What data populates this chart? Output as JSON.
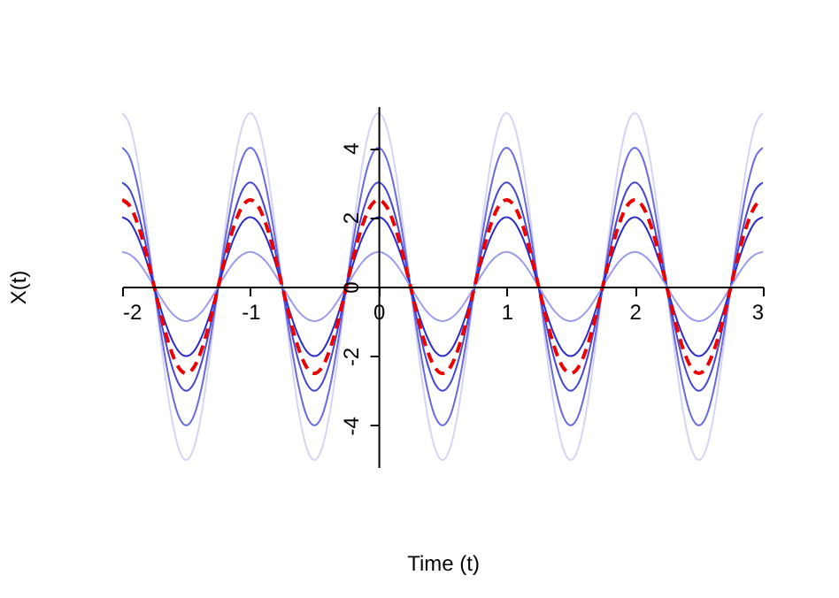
{
  "chart_data": {
    "type": "line",
    "xlabel": "Time (t)",
    "ylabel": "X(t)",
    "x": [
      -2,
      -1.9375,
      -1.875,
      -1.8125,
      -1.75,
      -1.6875,
      -1.625,
      -1.5625,
      -1.5,
      -1.4375,
      -1.375,
      -1.3125,
      -1.25,
      -1.1875,
      -1.125,
      -1.0625,
      -1,
      -0.9375,
      -0.875,
      -0.8125,
      -0.75,
      -0.6875,
      -0.625,
      -0.5625,
      -0.5,
      -0.4375,
      -0.375,
      -0.3125,
      -0.25,
      -0.1875,
      -0.125,
      -0.0625,
      0,
      0.0625,
      0.125,
      0.1875,
      0.25,
      0.3125,
      0.375,
      0.4375,
      0.5,
      0.5625,
      0.625,
      0.6875,
      0.75,
      0.8125,
      0.875,
      0.9375,
      1,
      1.0625,
      1.125,
      1.1875,
      1.25,
      1.3125,
      1.375,
      1.4375,
      1.5,
      1.5625,
      1.625,
      1.6875,
      1.75,
      1.8125,
      1.875,
      1.9375,
      2,
      2.0625,
      2.125,
      2.1875,
      2.25,
      2.3125,
      2.375,
      2.4375,
      2.5,
      2.5625,
      2.625,
      2.6875,
      2.75,
      2.8125,
      2.875,
      2.9375,
      3
    ],
    "series": [
      {
        "color": "#d4d4f6",
        "line_style": "solid",
        "values": [
          5,
          4.62,
          3.54,
          1.91,
          0,
          -1.91,
          -3.54,
          -4.62,
          -5,
          -4.62,
          -3.54,
          -1.91,
          0,
          1.91,
          3.54,
          4.62,
          5,
          4.62,
          3.54,
          1.91,
          0,
          -1.91,
          -3.54,
          -4.62,
          -5,
          -4.62,
          -3.54,
          -1.91,
          0,
          1.91,
          3.54,
          4.62,
          5,
          4.62,
          3.54,
          1.91,
          0,
          -1.91,
          -3.54,
          -4.62,
          -5,
          -4.62,
          -3.54,
          -1.91,
          0,
          1.91,
          3.54,
          4.62,
          5,
          4.62,
          3.54,
          1.91,
          0,
          -1.91,
          -3.54,
          -4.62,
          -5,
          -4.62,
          -3.54,
          -1.91,
          0,
          1.91,
          3.54,
          4.62,
          5,
          4.62,
          3.54,
          1.91,
          0,
          -1.91,
          -3.54,
          -4.62,
          -5,
          -4.62,
          -3.54,
          -1.91,
          0,
          1.91,
          3.54,
          4.62,
          5
        ]
      },
      {
        "color": "#6a6ae2",
        "line_style": "solid",
        "values": [
          4,
          3.7,
          2.83,
          1.53,
          0,
          -1.53,
          -2.83,
          -3.7,
          -4,
          -3.7,
          -2.83,
          -1.53,
          0,
          1.53,
          2.83,
          3.7,
          4,
          3.7,
          2.83,
          1.53,
          0,
          -1.53,
          -2.83,
          -3.7,
          -4,
          -3.7,
          -2.83,
          -1.53,
          0,
          1.53,
          2.83,
          3.7,
          4,
          3.7,
          2.83,
          1.53,
          0,
          -1.53,
          -2.83,
          -3.7,
          -4,
          -3.7,
          -2.83,
          -1.53,
          0,
          1.53,
          2.83,
          3.7,
          4,
          3.7,
          2.83,
          1.53,
          0,
          -1.53,
          -2.83,
          -3.7,
          -4,
          -3.7,
          -2.83,
          -1.53,
          0,
          1.53,
          2.83,
          3.7,
          4,
          3.7,
          2.83,
          1.53,
          0,
          -1.53,
          -2.83,
          -3.7,
          -4,
          -3.7,
          -2.83,
          -1.53,
          0,
          1.53,
          2.83,
          3.7,
          4
        ]
      },
      {
        "color": "#4646d4",
        "line_style": "solid",
        "values": [
          3,
          2.77,
          2.12,
          1.15,
          0,
          -1.15,
          -2.12,
          -2.77,
          -3,
          -2.77,
          -2.12,
          -1.15,
          0,
          1.15,
          2.12,
          2.77,
          3,
          2.77,
          2.12,
          1.15,
          0,
          -1.15,
          -2.12,
          -2.77,
          -3,
          -2.77,
          -2.12,
          -1.15,
          0,
          1.15,
          2.12,
          2.77,
          3,
          2.77,
          2.12,
          1.15,
          0,
          -1.15,
          -2.12,
          -2.77,
          -3,
          -2.77,
          -2.12,
          -1.15,
          0,
          1.15,
          2.12,
          2.77,
          3,
          2.77,
          2.12,
          1.15,
          0,
          -1.15,
          -2.12,
          -2.77,
          -3,
          -2.77,
          -2.12,
          -1.15,
          0,
          1.15,
          2.12,
          2.77,
          3,
          2.77,
          2.12,
          1.15,
          0,
          -1.15,
          -2.12,
          -2.77,
          -3,
          -2.77,
          -2.12,
          -1.15,
          0,
          1.15,
          2.12,
          2.77,
          3
        ]
      },
      {
        "color": "#2a2acc",
        "line_style": "solid",
        "values": [
          2,
          1.85,
          1.41,
          0.77,
          0,
          -0.77,
          -1.41,
          -1.85,
          -2,
          -1.85,
          -1.41,
          -0.77,
          0,
          0.77,
          1.41,
          1.85,
          2,
          1.85,
          1.41,
          0.77,
          0,
          -0.77,
          -1.41,
          -1.85,
          -2,
          -1.85,
          -1.41,
          -0.77,
          0,
          0.77,
          1.41,
          1.85,
          2,
          1.85,
          1.41,
          0.77,
          0,
          -0.77,
          -1.41,
          -1.85,
          -2,
          -1.85,
          -1.41,
          -0.77,
          0,
          0.77,
          1.41,
          1.85,
          2,
          1.85,
          1.41,
          0.77,
          0,
          -0.77,
          -1.41,
          -1.85,
          -2,
          -1.85,
          -1.41,
          -0.77,
          0,
          0.77,
          1.41,
          1.85,
          2,
          1.85,
          1.41,
          0.77,
          0,
          -0.77,
          -1.41,
          -1.85,
          -2,
          -1.85,
          -1.41,
          -0.77,
          0,
          0.77,
          1.41,
          1.85,
          2
        ]
      },
      {
        "color": "#9c9cec",
        "line_style": "solid",
        "values": [
          1,
          0.92,
          0.71,
          0.38,
          0,
          -0.38,
          -0.71,
          -0.92,
          -1,
          -0.92,
          -0.71,
          -0.38,
          0,
          0.38,
          0.71,
          0.92,
          1,
          0.92,
          0.71,
          0.38,
          0,
          -0.38,
          -0.71,
          -0.92,
          -1,
          -0.92,
          -0.71,
          -0.38,
          0,
          0.38,
          0.71,
          0.92,
          1,
          0.92,
          0.71,
          0.38,
          0,
          -0.38,
          -0.71,
          -0.92,
          -1,
          -0.92,
          -0.71,
          -0.38,
          0,
          0.38,
          0.71,
          0.92,
          1,
          0.92,
          0.71,
          0.38,
          0,
          -0.38,
          -0.71,
          -0.92,
          -1,
          -0.92,
          -0.71,
          -0.38,
          0,
          0.38,
          0.71,
          0.92,
          1,
          0.92,
          0.71,
          0.38,
          0,
          -0.38,
          -0.71,
          -0.92,
          -1,
          -0.92,
          -0.71,
          -0.38,
          0,
          0.38,
          0.71,
          0.92,
          1
        ]
      },
      {
        "color": "#ee0000",
        "line_style": "dashed",
        "values": [
          2.5,
          2.31,
          1.77,
          0.96,
          0,
          -0.96,
          -1.77,
          -2.31,
          -2.5,
          -2.31,
          -1.77,
          -0.96,
          0,
          0.96,
          1.77,
          2.31,
          2.5,
          2.31,
          1.77,
          0.96,
          0,
          -0.96,
          -1.77,
          -2.31,
          -2.5,
          -2.31,
          -1.77,
          -0.96,
          0,
          0.96,
          1.77,
          2.31,
          2.5,
          2.31,
          1.77,
          0.96,
          0,
          -0.96,
          -1.77,
          -2.31,
          -2.5,
          -2.31,
          -1.77,
          -0.96,
          0,
          0.96,
          1.77,
          2.31,
          2.5,
          2.31,
          1.77,
          0.96,
          0,
          -0.96,
          -1.77,
          -2.31,
          -2.5,
          -2.31,
          -1.77,
          -0.96,
          0,
          0.96,
          1.77,
          2.31,
          2.5,
          2.31,
          1.77,
          0.96,
          0,
          -0.96,
          -1.77,
          -2.31,
          -2.5,
          -2.31,
          -1.77,
          -0.96,
          0,
          0.96,
          1.77,
          2.31,
          2.5
        ]
      }
    ],
    "xlim": [
      -2,
      3
    ],
    "ylim": [
      -5.2,
      5.2
    ],
    "xticks": [
      -2,
      -1,
      0,
      1,
      2,
      3
    ],
    "yticks": [
      -4,
      -2,
      0,
      2,
      4
    ],
    "grid": false,
    "marker": "none"
  }
}
